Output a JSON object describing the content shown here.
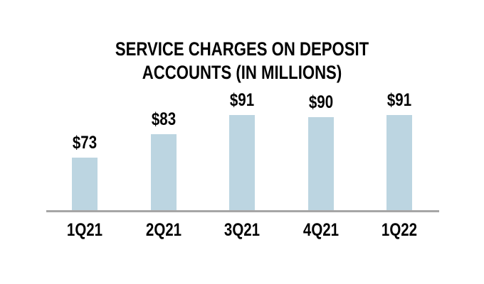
{
  "chart_data": {
    "type": "bar",
    "title": "SERVICE CHARGES ON DEPOSIT ACCOUNTS (IN MILLIONS)",
    "categories": [
      "1Q21",
      "2Q21",
      "3Q21",
      "4Q21",
      "1Q22"
    ],
    "values": [
      73,
      83,
      91,
      90,
      91
    ],
    "value_labels": [
      "$73",
      "$83",
      "$91",
      "$90",
      "$91"
    ],
    "xlabel": "",
    "ylabel": "",
    "ylim": [
      50,
      95
    ],
    "grid": false,
    "legend": "none",
    "colors": {
      "bar_fill": "#BCD5E1",
      "axis_line": "#A6A6A6",
      "text": "#000000",
      "background": "#FFFFFF"
    }
  }
}
